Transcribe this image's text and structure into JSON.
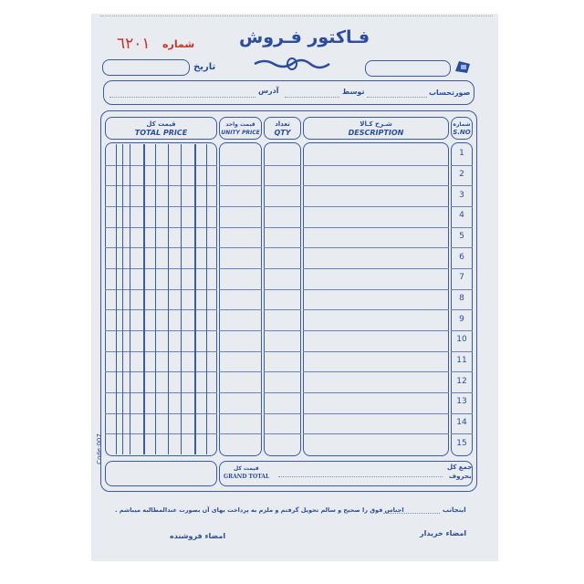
{
  "header": {
    "title": "فـاکتور فـروش",
    "serial_label": "شماره",
    "serial_number": "٦٢٠١",
    "date_label": "تاریخ",
    "phone_icon": "telephone-icon"
  },
  "address_row": {
    "account_label": "صورتحساب",
    "by_label": "توسط",
    "address_label": "آدرس"
  },
  "table": {
    "columns": [
      {
        "fa": "قیمت کل",
        "en": "TOTAL PRICE"
      },
      {
        "fa": "قیمت واحد",
        "en": "UNITY PRICE"
      },
      {
        "fa": "تعداد",
        "en": "QTY"
      },
      {
        "fa": "شـرح کـالا",
        "en": "DESCRIPTION"
      },
      {
        "fa": "شماره",
        "en": "S.NO"
      }
    ],
    "rows": [
      "1",
      "2",
      "3",
      "4",
      "5",
      "6",
      "7",
      "8",
      "9",
      "10",
      "11",
      "12",
      "13",
      "14",
      "15"
    ]
  },
  "totals": {
    "words_label_1": "جمع کل",
    "words_label_2": "بحروف",
    "grand_fa": "قیمت کل",
    "grand_en": "GRAND TOTAL"
  },
  "footer": {
    "undersigned": "اینجانب",
    "statement": "اجناس فوق را صحیح و سالم تحویل گرفتم و ملزم به پرداخت بهای آن بصورت عندالمطالبه میباشم .",
    "buyer_signature": "امضاء خریدار",
    "seller_signature": "امضاء فروشنده",
    "code": "Code:007"
  },
  "colors": {
    "ink": "#2b4c9f",
    "serial": "#c8342c",
    "paper": "#e8ecf1"
  }
}
